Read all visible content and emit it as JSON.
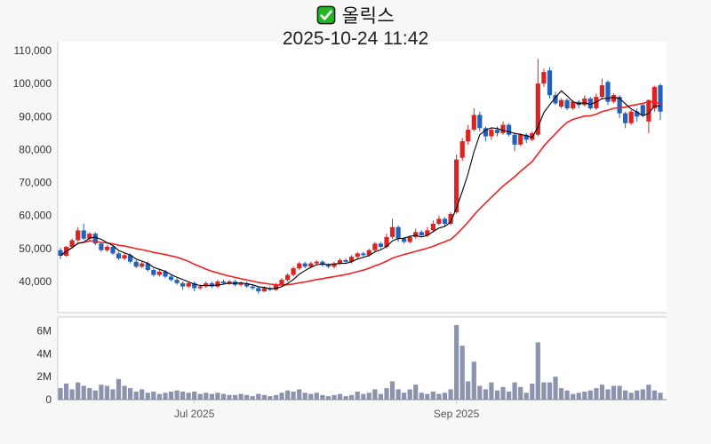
{
  "header": {
    "title": "올릭스",
    "title_icon": "green-check",
    "subtitle": "2025-10-24 11:42"
  },
  "colors": {
    "background": "#f7f7f7",
    "plot_background": "#ffffff",
    "candle_up": "#dd2222",
    "candle_down": "#2262bc",
    "ma_short": "#000000",
    "ma_long": "#ee2222",
    "volume_bar": "#8b93af",
    "axis_line": "#cccccc",
    "axis_line_dark": "#888888",
    "price_label": "#333333",
    "date_label": "#555555"
  },
  "chart_data": {
    "type": "candlestick",
    "title": "올릭스",
    "subtitle": "2025-10-24 11:42",
    "legend": "none",
    "grid": false,
    "price_axis": {
      "side": "left",
      "min": 30500,
      "max": 112700,
      "ticks": [
        {
          "value": 40000,
          "label": "40,000"
        },
        {
          "value": 50000,
          "label": "50,000"
        },
        {
          "value": 60000,
          "label": "60,000"
        },
        {
          "value": 70000,
          "label": "70,000"
        },
        {
          "value": 80000,
          "label": "80,000"
        },
        {
          "value": 90000,
          "label": "90,000"
        },
        {
          "value": 100000,
          "label": "100,000"
        },
        {
          "value": 110000,
          "label": "110,000"
        }
      ]
    },
    "volume_axis": {
      "side": "left",
      "min": 0,
      "max": 7200000,
      "ticks": [
        {
          "value": 0,
          "label": "0"
        },
        {
          "value": 2,
          "label": "2M"
        },
        {
          "value": 4,
          "label": "4M"
        },
        {
          "value": 6,
          "label": "6M"
        }
      ]
    },
    "date_axis": {
      "ticks": [
        {
          "index": 23,
          "label": "Jul 2025"
        },
        {
          "index": 68,
          "label": "Sep 2025"
        }
      ]
    },
    "overlays": [
      {
        "name": "ma-short",
        "period": 5,
        "color": "#000000"
      },
      {
        "name": "ma-long",
        "period": 20,
        "color": "#ee2222"
      }
    ],
    "candles_ohlc": [
      [
        49500,
        50200,
        46800,
        47800
      ],
      [
        47800,
        50800,
        47500,
        50500
      ],
      [
        50500,
        53000,
        50000,
        52500
      ],
      [
        52500,
        56500,
        52000,
        55500
      ],
      [
        55500,
        57500,
        52500,
        53000
      ],
      [
        53000,
        55000,
        52500,
        54500
      ],
      [
        54500,
        55000,
        51000,
        51500
      ],
      [
        51500,
        52000,
        49000,
        49500
      ],
      [
        49500,
        51000,
        49000,
        50500
      ],
      [
        50500,
        51000,
        48000,
        48500
      ],
      [
        48500,
        49000,
        46500,
        47000
      ],
      [
        47000,
        48500,
        46500,
        48000
      ],
      [
        48000,
        48500,
        45500,
        46000
      ],
      [
        46000,
        46500,
        44000,
        44500
      ],
      [
        44500,
        46000,
        44000,
        45500
      ],
      [
        45500,
        46000,
        43000,
        43500
      ],
      [
        43500,
        44000,
        41500,
        42000
      ],
      [
        42000,
        43500,
        41500,
        43000
      ],
      [
        43000,
        43500,
        41000,
        41500
      ],
      [
        41500,
        42000,
        40000,
        40500
      ],
      [
        40500,
        41000,
        39000,
        39500
      ],
      [
        39500,
        40000,
        37500,
        38500
      ],
      [
        38500,
        40000,
        38000,
        39500
      ],
      [
        39500,
        40000,
        37000,
        38000
      ],
      [
        38000,
        39000,
        37500,
        38500
      ],
      [
        38500,
        40000,
        38000,
        39500
      ],
      [
        39500,
        40000,
        38000,
        38500
      ],
      [
        38500,
        40500,
        38000,
        40000
      ],
      [
        40000,
        40500,
        39000,
        39500
      ],
      [
        39500,
        40500,
        39000,
        40000
      ],
      [
        40000,
        40500,
        38500,
        39000
      ],
      [
        39000,
        40000,
        38500,
        39500
      ],
      [
        39500,
        40000,
        38000,
        38500
      ],
      [
        38500,
        39000,
        37500,
        38000
      ],
      [
        38000,
        38500,
        36300,
        37000
      ],
      [
        37000,
        38500,
        36800,
        38000
      ],
      [
        38000,
        38500,
        37000,
        37500
      ],
      [
        37500,
        39500,
        37200,
        39000
      ],
      [
        39000,
        41000,
        38500,
        40500
      ],
      [
        40500,
        42500,
        40000,
        42000
      ],
      [
        42000,
        44500,
        41500,
        44000
      ],
      [
        44000,
        46000,
        43500,
        45500
      ],
      [
        45500,
        46000,
        44000,
        44500
      ],
      [
        44500,
        46000,
        44000,
        45500
      ],
      [
        45500,
        46500,
        45000,
        46000
      ],
      [
        46000,
        46500,
        44500,
        45000
      ],
      [
        45000,
        45500,
        44000,
        44500
      ],
      [
        44500,
        46000,
        44000,
        45500
      ],
      [
        45500,
        47000,
        45000,
        46500
      ],
      [
        46500,
        47000,
        45500,
        46000
      ],
      [
        46000,
        48000,
        45500,
        47500
      ],
      [
        47500,
        49000,
        47000,
        48500
      ],
      [
        48500,
        49000,
        47500,
        48000
      ],
      [
        48000,
        50000,
        47500,
        49500
      ],
      [
        49500,
        52000,
        49000,
        51500
      ],
      [
        51500,
        52000,
        50000,
        50500
      ],
      [
        50500,
        54500,
        50000,
        53500
      ],
      [
        53500,
        59000,
        53000,
        56500
      ],
      [
        56500,
        57000,
        52000,
        53000
      ],
      [
        53000,
        53500,
        51500,
        52000
      ],
      [
        52000,
        54000,
        51500,
        53500
      ],
      [
        53500,
        56000,
        53000,
        55000
      ],
      [
        55000,
        55500,
        53500,
        54000
      ],
      [
        54000,
        56500,
        53500,
        55500
      ],
      [
        55500,
        58500,
        55000,
        57500
      ],
      [
        57500,
        60000,
        57000,
        59000
      ],
      [
        59000,
        59500,
        56500,
        57500
      ],
      [
        57500,
        61000,
        57000,
        60500
      ],
      [
        61000,
        78500,
        60500,
        77000
      ],
      [
        77500,
        83500,
        76500,
        82500
      ],
      [
        82500,
        87500,
        81500,
        86000
      ],
      [
        86000,
        92500,
        85500,
        90500
      ],
      [
        90500,
        91500,
        85500,
        86500
      ],
      [
        86500,
        87000,
        82500,
        84000
      ],
      [
        84000,
        86500,
        83000,
        86000
      ],
      [
        86000,
        87000,
        84000,
        85000
      ],
      [
        85000,
        88500,
        84500,
        87500
      ],
      [
        87500,
        88000,
        84000,
        84500
      ],
      [
        84500,
        85000,
        79500,
        81500
      ],
      [
        81500,
        85000,
        81000,
        84500
      ],
      [
        84500,
        85000,
        82000,
        83000
      ],
      [
        83000,
        85500,
        82500,
        85000
      ],
      [
        84500,
        107500,
        84000,
        100000
      ],
      [
        100000,
        104500,
        99000,
        103500
      ],
      [
        104000,
        105000,
        95500,
        96500
      ],
      [
        96500,
        97500,
        93500,
        94000
      ],
      [
        93000,
        95500,
        92500,
        95000
      ],
      [
        95000,
        95500,
        92000,
        92500
      ],
      [
        92500,
        95000,
        92000,
        94500
      ],
      [
        94500,
        95000,
        92500,
        93500
      ],
      [
        93500,
        96500,
        93000,
        95500
      ],
      [
        95500,
        96000,
        92000,
        92500
      ],
      [
        92500,
        97000,
        92000,
        96000
      ],
      [
        96000,
        101500,
        95500,
        99500
      ],
      [
        100500,
        101000,
        93500,
        94500
      ],
      [
        94500,
        97000,
        94000,
        96500
      ],
      [
        96000,
        96500,
        89500,
        91000
      ],
      [
        91000,
        91500,
        86500,
        88000
      ],
      [
        88000,
        92000,
        87500,
        91500
      ],
      [
        91500,
        92500,
        88500,
        90000
      ],
      [
        93500,
        94000,
        89900,
        90500
      ],
      [
        88500,
        95200,
        85000,
        95000
      ],
      [
        92500,
        99300,
        91500,
        99000
      ],
      [
        99500,
        100000,
        89000,
        91500
      ]
    ],
    "volumes_millions": [
      1.0,
      1.4,
      0.9,
      1.5,
      1.2,
      1.0,
      0.8,
      1.3,
      1.2,
      0.9,
      1.8,
      1.2,
      1.0,
      0.7,
      0.9,
      0.6,
      0.7,
      0.5,
      0.6,
      0.7,
      0.8,
      0.7,
      0.6,
      0.7,
      0.5,
      0.6,
      0.5,
      0.6,
      0.5,
      0.4,
      0.4,
      0.5,
      0.4,
      0.3,
      0.5,
      0.4,
      0.3,
      0.4,
      0.6,
      0.8,
      0.7,
      0.9,
      0.6,
      0.5,
      0.6,
      0.4,
      0.3,
      0.4,
      0.5,
      0.3,
      0.4,
      0.7,
      0.5,
      0.6,
      0.9,
      0.5,
      1.0,
      1.6,
      0.9,
      0.6,
      0.9,
      1.3,
      0.6,
      0.5,
      0.7,
      0.5,
      0.6,
      0.9,
      6.5,
      4.7,
      1.6,
      3.3,
      1.2,
      0.9,
      1.5,
      0.8,
      1.1,
      0.7,
      1.5,
      1.1,
      0.6,
      1.4,
      5.0,
      1.5,
      1.5,
      2.0,
      1.0,
      0.8,
      0.5,
      0.6,
      0.7,
      0.8,
      1.0,
      1.3,
      0.9,
      1.2,
      1.2,
      0.8,
      0.6,
      0.8,
      0.9,
      1.3,
      0.8,
      0.6
    ]
  }
}
